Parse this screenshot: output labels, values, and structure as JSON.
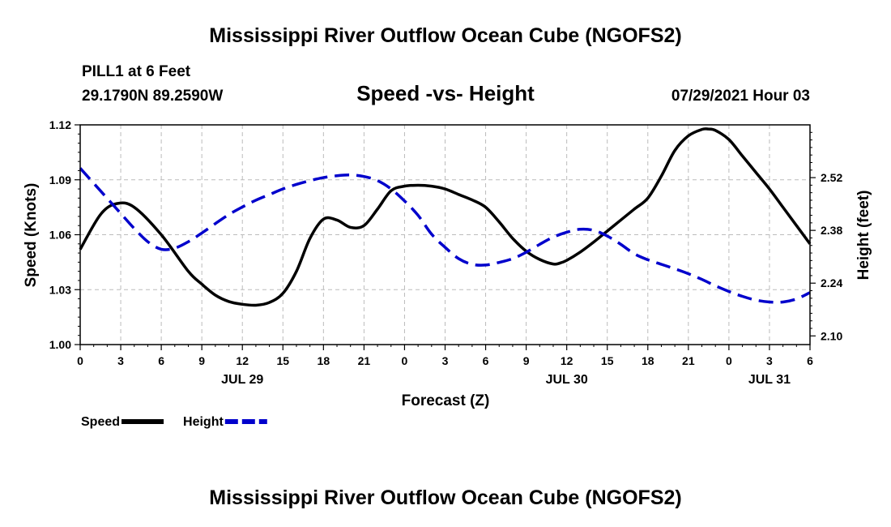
{
  "page": {
    "title_top": "Mississippi River Outflow Ocean Cube (NGOFS2)",
    "title_bottom": "Mississippi River Outflow Ocean Cube (NGOFS2)",
    "station": "PILL1 at 6 Feet",
    "coords": "29.1790N  89.2590W",
    "datetime": "07/29/2021 Hour 03"
  },
  "chart_data": {
    "type": "line",
    "title": "Speed -vs- Height",
    "xlabel": "Forecast (Z)",
    "ylabel": "Speed (Knots)",
    "ylabel_right": "Height (feet)",
    "xlim": [
      0,
      54
    ],
    "ylim": [
      1.0,
      1.12
    ],
    "ylim_right": [
      2.077,
      2.66
    ],
    "x_ticks": [
      0,
      3,
      6,
      9,
      12,
      15,
      18,
      21,
      24,
      27,
      30,
      33,
      36,
      39,
      42,
      45,
      48,
      51,
      54
    ],
    "x_tick_labels": [
      "0",
      "3",
      "6",
      "9",
      "12",
      "15",
      "18",
      "21",
      "0",
      "3",
      "6",
      "9",
      "12",
      "15",
      "18",
      "21",
      "0",
      "3",
      "6"
    ],
    "y_ticks": [
      1.0,
      1.03,
      1.06,
      1.09,
      1.12
    ],
    "y_tick_labels": [
      "1.00",
      "1.03",
      "1.06",
      "1.09",
      "1.12"
    ],
    "y_ticks_right": [
      2.1,
      2.24,
      2.38,
      2.52
    ],
    "y_tick_labels_right": [
      "2.10",
      "2.24",
      "2.38",
      "2.52"
    ],
    "date_labels": [
      {
        "x": 12,
        "label": "JUL 29"
      },
      {
        "x": 36,
        "label": "JUL 30"
      },
      {
        "x": 51,
        "label": "JUL 31"
      }
    ],
    "grid": true,
    "legend_position": "bottom-left",
    "series": [
      {
        "name": "Speed",
        "color": "#000000",
        "dashed": false,
        "axis": "left",
        "x": [
          0,
          1.5,
          2.7,
          4,
          6,
          8,
          9,
          10,
          11,
          12,
          13,
          14,
          15,
          16,
          17,
          18,
          19,
          20,
          21,
          22,
          23,
          24,
          25,
          26,
          27,
          28,
          29,
          30,
          31,
          32,
          33,
          34,
          35,
          35.5,
          36,
          37,
          38,
          39,
          40,
          41,
          42,
          43,
          44,
          45,
          46,
          46.5,
          47,
          48,
          49,
          50,
          51,
          52,
          53,
          54
        ],
        "y": [
          1.052,
          1.071,
          1.077,
          1.075,
          1.06,
          1.04,
          1.033,
          1.027,
          1.0235,
          1.022,
          1.0215,
          1.023,
          1.028,
          1.04,
          1.058,
          1.0685,
          1.068,
          1.064,
          1.065,
          1.074,
          1.084,
          1.0865,
          1.087,
          1.0865,
          1.085,
          1.082,
          1.079,
          1.075,
          1.067,
          1.058,
          1.051,
          1.0465,
          1.044,
          1.0445,
          1.046,
          1.0505,
          1.056,
          1.062,
          1.068,
          1.074,
          1.08,
          1.092,
          1.106,
          1.114,
          1.1175,
          1.1177,
          1.117,
          1.112,
          1.103,
          1.094,
          1.085,
          1.075,
          1.065,
          1.055
        ]
      },
      {
        "name": "Height",
        "color": "#0000cc",
        "dashed": true,
        "axis": "right",
        "x": [
          0,
          1,
          2,
          3,
          4,
          5,
          6,
          7,
          8,
          9,
          10,
          11,
          12,
          13,
          14,
          15,
          16,
          17,
          18,
          19,
          20,
          21,
          22,
          23,
          24,
          25,
          26,
          27,
          28,
          29,
          30,
          31,
          32,
          33,
          34,
          35,
          36,
          37,
          38,
          39,
          40,
          41,
          42,
          43,
          44,
          45,
          46,
          47,
          48,
          49,
          50,
          51,
          52,
          53,
          54
        ],
        "y": [
          2.545,
          2.505,
          2.465,
          2.425,
          2.385,
          2.35,
          2.33,
          2.333,
          2.35,
          2.373,
          2.398,
          2.422,
          2.442,
          2.46,
          2.475,
          2.49,
          2.502,
          2.512,
          2.52,
          2.525,
          2.527,
          2.523,
          2.512,
          2.49,
          2.458,
          2.42,
          2.37,
          2.335,
          2.305,
          2.29,
          2.288,
          2.295,
          2.305,
          2.322,
          2.343,
          2.362,
          2.375,
          2.383,
          2.38,
          2.365,
          2.343,
          2.318,
          2.302,
          2.29,
          2.278,
          2.265,
          2.25,
          2.233,
          2.218,
          2.205,
          2.195,
          2.19,
          2.19,
          2.198,
          2.215
        ]
      }
    ]
  }
}
